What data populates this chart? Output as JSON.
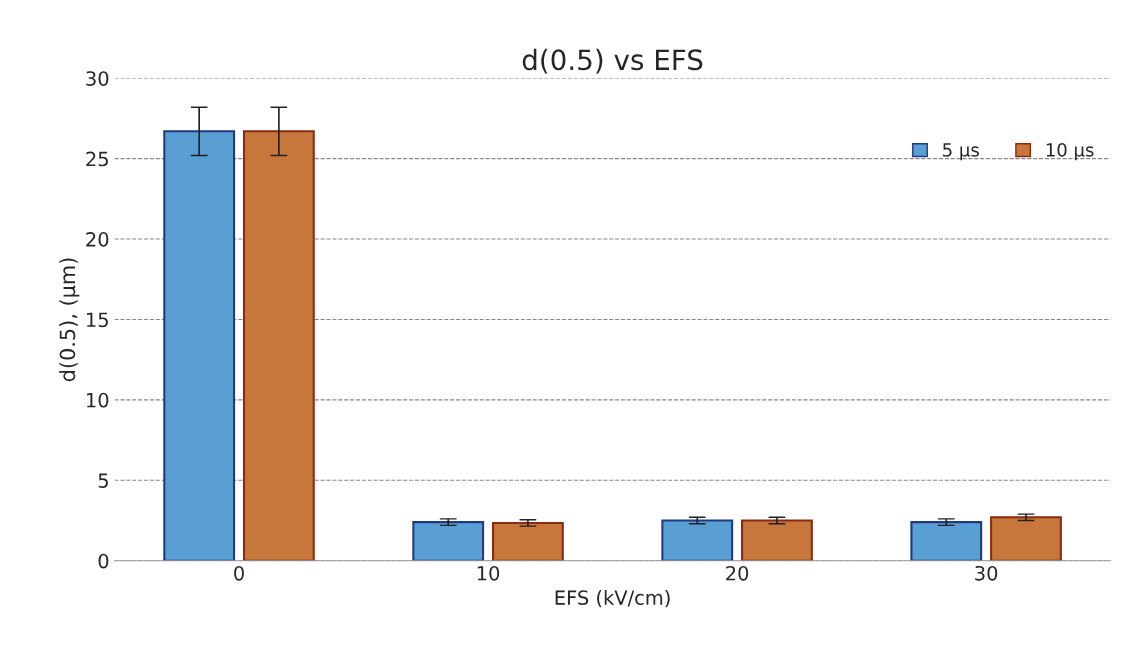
{
  "chart_data": {
    "type": "bar",
    "title": "d(0.5) vs EFS",
    "xlabel": "EFS (kV/cm)",
    "ylabel": "d(0.5), (µm)",
    "categories": [
      "0",
      "10",
      "20",
      "30"
    ],
    "series": [
      {
        "name": "5 µs",
        "color": "#5a9fd4",
        "values": [
          26.7,
          2.4,
          2.5,
          2.4
        ],
        "errors": [
          1.5,
          0.2,
          0.2,
          0.2
        ]
      },
      {
        "name": "10 µs",
        "color": "#c8773c",
        "values": [
          26.7,
          2.35,
          2.5,
          2.7
        ],
        "errors": [
          1.5,
          0.2,
          0.2,
          0.2
        ]
      }
    ],
    "ylim": [
      0,
      30
    ],
    "yticks": [
      0,
      5,
      10,
      15,
      20,
      25,
      30
    ],
    "grid": "y",
    "legend": "top right"
  }
}
